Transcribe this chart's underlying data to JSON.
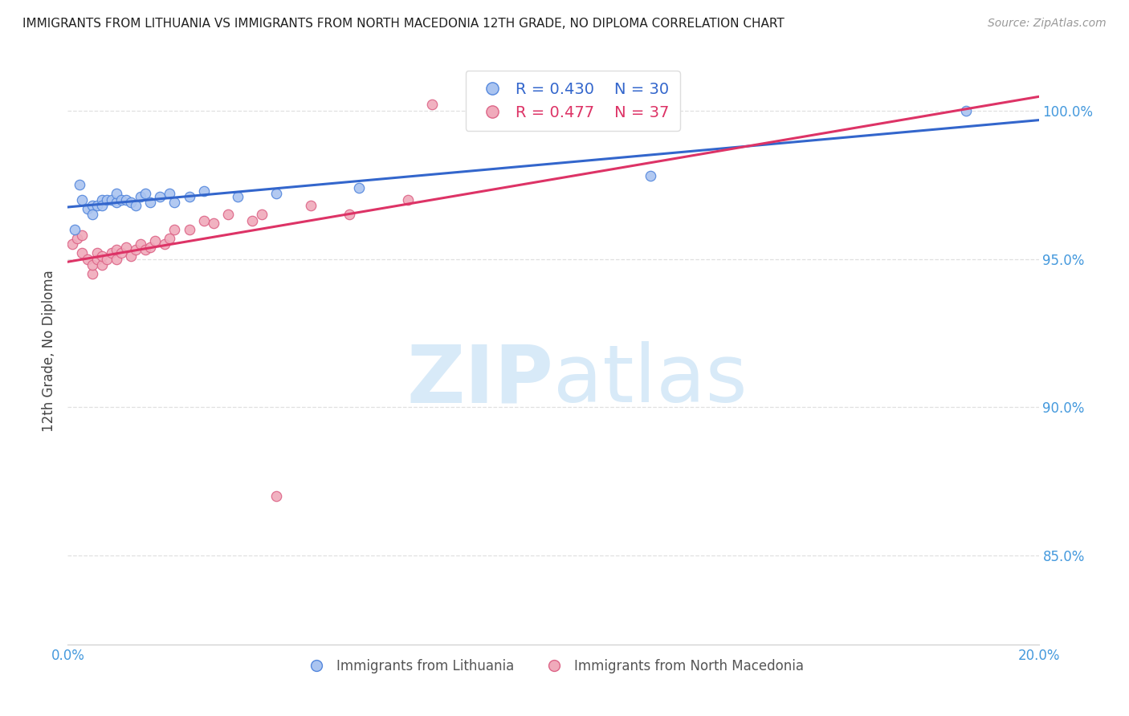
{
  "title": "IMMIGRANTS FROM LITHUANIA VS IMMIGRANTS FROM NORTH MACEDONIA 12TH GRADE, NO DIPLOMA CORRELATION CHART",
  "source": "Source: ZipAtlas.com",
  "ylabel": "12th Grade, No Diploma",
  "x_min": 0.0,
  "x_max": 0.2,
  "y_min": 0.82,
  "y_max": 1.018,
  "x_ticks": [
    0.0,
    0.04,
    0.08,
    0.12,
    0.16,
    0.2
  ],
  "x_tick_labels": [
    "0.0%",
    "",
    "",
    "",
    "",
    "20.0%"
  ],
  "y_ticks": [
    0.85,
    0.9,
    0.95,
    1.0
  ],
  "y_tick_labels": [
    "85.0%",
    "90.0%",
    "95.0%",
    "100.0%"
  ],
  "lithuania_color": "#aac4f0",
  "lithuania_edge": "#5588dd",
  "macedonia_color": "#f0aabb",
  "macedonia_edge": "#dd6688",
  "legend_R_lith": "R = 0.430",
  "legend_N_lith": "N = 30",
  "legend_R_mace": "R = 0.477",
  "legend_N_mace": "N = 37",
  "lith_line_color": "#3366cc",
  "mace_line_color": "#dd3366",
  "watermark_zip": "ZIP",
  "watermark_atlas": "atlas",
  "watermark_color": "#d8eaf8",
  "background_color": "#ffffff",
  "grid_color": "#dddddd",
  "axis_color": "#4499dd",
  "lith_x": [
    0.0015,
    0.0025,
    0.003,
    0.004,
    0.005,
    0.005,
    0.006,
    0.007,
    0.007,
    0.008,
    0.009,
    0.01,
    0.01,
    0.011,
    0.012,
    0.013,
    0.014,
    0.015,
    0.016,
    0.017,
    0.019,
    0.021,
    0.022,
    0.025,
    0.028,
    0.035,
    0.043,
    0.06,
    0.12,
    0.185
  ],
  "lith_y": [
    0.96,
    0.975,
    0.97,
    0.967,
    0.968,
    0.965,
    0.968,
    0.97,
    0.968,
    0.97,
    0.97,
    0.969,
    0.972,
    0.97,
    0.97,
    0.969,
    0.968,
    0.971,
    0.972,
    0.969,
    0.971,
    0.972,
    0.969,
    0.971,
    0.973,
    0.971,
    0.972,
    0.974,
    0.978,
    1.0
  ],
  "mace_x": [
    0.001,
    0.002,
    0.003,
    0.003,
    0.004,
    0.005,
    0.005,
    0.006,
    0.006,
    0.007,
    0.007,
    0.008,
    0.009,
    0.01,
    0.01,
    0.011,
    0.012,
    0.013,
    0.014,
    0.015,
    0.016,
    0.017,
    0.018,
    0.02,
    0.021,
    0.022,
    0.025,
    0.028,
    0.03,
    0.033,
    0.038,
    0.04,
    0.043,
    0.05,
    0.058,
    0.07,
    0.075
  ],
  "mace_y": [
    0.955,
    0.957,
    0.952,
    0.958,
    0.95,
    0.945,
    0.948,
    0.95,
    0.952,
    0.948,
    0.951,
    0.95,
    0.952,
    0.95,
    0.953,
    0.952,
    0.954,
    0.951,
    0.953,
    0.955,
    0.953,
    0.954,
    0.956,
    0.955,
    0.957,
    0.96,
    0.96,
    0.963,
    0.962,
    0.965,
    0.963,
    0.965,
    0.87,
    0.968,
    0.965,
    0.97,
    1.002
  ],
  "lith_size_special": 180,
  "point_size": 80
}
